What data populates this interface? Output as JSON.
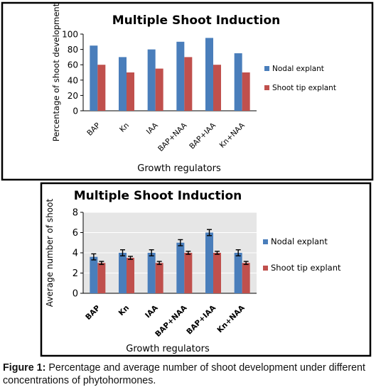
{
  "chart_data": [
    {
      "type": "bar",
      "title": "Multiple Shoot Induction",
      "xlabel": "Growth regulators",
      "ylabel": "Percentage of shoot development",
      "categories": [
        "BAP",
        "Kn",
        "IAA",
        "BAP+NAA",
        "BAP+IAA",
        "Kn+NAA"
      ],
      "series": [
        {
          "name": "Nodal explant",
          "values": [
            85,
            70,
            80,
            90,
            95,
            75
          ],
          "color": "#4a7ebb"
        },
        {
          "name": "Shoot tip explant",
          "values": [
            60,
            50,
            55,
            70,
            60,
            50
          ],
          "color": "#c0504d"
        }
      ],
      "ylim": [
        0,
        100
      ],
      "yticks": [
        "0",
        "20",
        "40",
        "60",
        "80",
        "100"
      ],
      "grid": false,
      "legend": "right"
    },
    {
      "type": "bar",
      "title": "Multiple Shoot Induction",
      "xlabel": "Growth regulators",
      "ylabel": "Average number of shoot",
      "categories": [
        "BAP",
        "Kn",
        "IAA",
        "BAP+NAA",
        "BAP+IAA",
        "Kn+NAA"
      ],
      "series": [
        {
          "name": "Nodal explant",
          "values": [
            3.6,
            4.0,
            4.0,
            5.0,
            6.0,
            4.0
          ],
          "error": [
            0.3,
            0.3,
            0.3,
            0.3,
            0.3,
            0.3
          ],
          "color": "#4a7ebb"
        },
        {
          "name": "Shoot tip explant",
          "values": [
            3.0,
            3.5,
            3.0,
            4.0,
            4.0,
            3.0
          ],
          "error": [
            0.15,
            0.15,
            0.15,
            0.15,
            0.15,
            0.15
          ],
          "color": "#c0504d"
        }
      ],
      "ylim": [
        0,
        8
      ],
      "yticks": [
        "0",
        "2",
        "4",
        "6",
        "8"
      ],
      "grid": true,
      "legend": "right"
    }
  ],
  "caption": {
    "label": "Figure 1:",
    "text": " Percentage and average number of shoot development under different concentrations of phytohormones."
  }
}
